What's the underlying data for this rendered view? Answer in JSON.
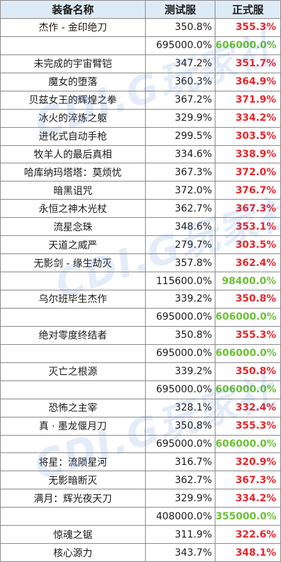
{
  "header": {
    "name": "装备名称",
    "test": "测试服",
    "live": "正式服"
  },
  "colors": {
    "header_bg": "#ddebf7",
    "up": "#e8262b",
    "down": "#6bc234"
  },
  "watermark": "CDI.G玩家社区",
  "rows": [
    {
      "name": "杰作 - 金印绝刀",
      "test": "350.8%",
      "live": "355.3%",
      "live_color": "red"
    },
    {
      "name": "",
      "test": "695000.0%",
      "live": "606000.0%",
      "live_color": "green"
    },
    {
      "name": "未完成的宇宙臂铠",
      "test": "347.2%",
      "live": "351.7%",
      "live_color": "red"
    },
    {
      "name": "魔女的堕落",
      "test": "360.3%",
      "live": "364.9%",
      "live_color": "red"
    },
    {
      "name": "贝兹女王的辉煌之拳",
      "test": "367.2%",
      "live": "371.9%",
      "live_color": "red"
    },
    {
      "name": "冰火的淬炼之躯",
      "test": "329.9%",
      "live": "334.2%",
      "live_color": "red"
    },
    {
      "name": "进化式自动手枪",
      "test": "299.5%",
      "live": "303.5%",
      "live_color": "red"
    },
    {
      "name": "牧羊人的最后真相",
      "test": "334.6%",
      "live": "338.9%",
      "live_color": "red"
    },
    {
      "name": "哈库纳玛塔塔：莫烦忧",
      "test": "367.3%",
      "live": "372.0%",
      "live_color": "red"
    },
    {
      "name": "暗黑诅咒",
      "test": "372.0%",
      "live": "376.7%",
      "live_color": "red"
    },
    {
      "name": "永恒之神木光杖",
      "test": "362.7%",
      "live": "367.3%",
      "live_color": "red"
    },
    {
      "name": "流星念珠",
      "test": "348.6%",
      "live": "353.1%",
      "live_color": "red"
    },
    {
      "name": "天道之威严",
      "test": "279.7%",
      "live": "303.5%",
      "live_color": "red"
    },
    {
      "name": "无影剑 - 缘生劫灭",
      "test": "357.8%",
      "live": "362.4%",
      "live_color": "red"
    },
    {
      "name": "",
      "test": "115600.0%",
      "live": "98400.0%",
      "live_color": "green"
    },
    {
      "name": "乌尔班毕生杰作",
      "test": "339.2%",
      "live": "350.8%",
      "live_color": "red"
    },
    {
      "name": "",
      "test": "695000.0%",
      "live": "606000.0%",
      "live_color": "green"
    },
    {
      "name": "绝对零度终结者",
      "test": "350.8%",
      "live": "355.3%",
      "live_color": "red"
    },
    {
      "name": "",
      "test": "695000.0%",
      "live": "606000.0%",
      "live_color": "green"
    },
    {
      "name": "灭亡之根源",
      "test": "339.2%",
      "live": "350.8%",
      "live_color": "red"
    },
    {
      "name": "",
      "test": "695000.0%",
      "live": "606000.0%",
      "live_color": "green"
    },
    {
      "name": "恐怖之主宰",
      "test": "328.1%",
      "live": "332.4%",
      "live_color": "red"
    },
    {
      "name": "真 · 墨龙偃月刀",
      "test": "350.8%",
      "live": "355.3%",
      "live_color": "red"
    },
    {
      "name": "",
      "test": "695000.0%",
      "live": "606000.0%",
      "live_color": "green"
    },
    {
      "name": "将星：流陨星河",
      "test": "316.7%",
      "live": "320.9%",
      "live_color": "red"
    },
    {
      "name": "无影暗断灭",
      "test": "362.7%",
      "live": "367.3%",
      "live_color": "red"
    },
    {
      "name": "满月：辉光夜天刀",
      "test": "329.9%",
      "live": "334.2%",
      "live_color": "red"
    },
    {
      "name": "",
      "test": "408000.0%",
      "live": "355000.0%",
      "live_color": "green"
    },
    {
      "name": "惊魂之锯",
      "test": "311.9%",
      "live": "322.6%",
      "live_color": "red"
    },
    {
      "name": "核心源力",
      "test": "343.7%",
      "live": "348.1%",
      "live_color": "red"
    }
  ]
}
